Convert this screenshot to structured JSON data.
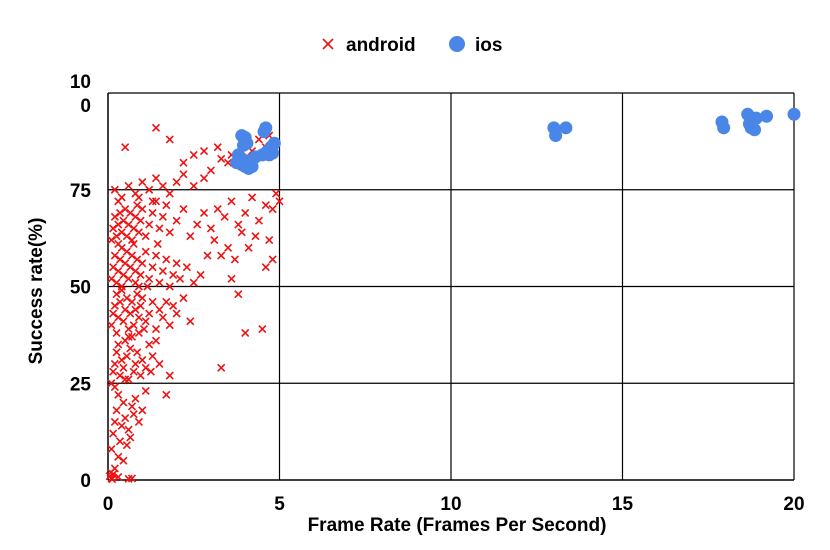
{
  "chart_data": {
    "type": "scatter",
    "title": "",
    "xlabel": "Frame Rate (Frames Per Second)",
    "ylabel": "Success rate(%)",
    "xlim": [
      0,
      20
    ],
    "ylim": [
      0,
      100
    ],
    "x_ticks": [
      "0",
      "5",
      "10",
      "15",
      "20"
    ],
    "y_ticks": [
      "0",
      "25",
      "50",
      "75",
      "10\n0"
    ],
    "grid": true,
    "legend": "top-center",
    "series": [
      {
        "name": "android",
        "marker": "x",
        "color": "#ee1111",
        "points": [
          [
            0.05,
            1
          ],
          [
            0.08,
            2
          ],
          [
            0.1,
            0.5
          ],
          [
            0.15,
            1.5
          ],
          [
            0.2,
            3
          ],
          [
            0.12,
            0.2
          ],
          [
            0.3,
            0.8
          ],
          [
            0.6,
            0.3
          ],
          [
            0.7,
            0.4
          ],
          [
            0.1,
            8
          ],
          [
            0.15,
            12
          ],
          [
            0.2,
            15
          ],
          [
            0.25,
            18
          ],
          [
            0.3,
            22
          ],
          [
            0.35,
            10
          ],
          [
            0.4,
            14
          ],
          [
            0.45,
            20
          ],
          [
            0.5,
            16
          ],
          [
            0.55,
            9
          ],
          [
            0.6,
            13
          ],
          [
            0.65,
            11
          ],
          [
            0.7,
            19
          ],
          [
            0.75,
            17
          ],
          [
            0.8,
            21
          ],
          [
            0.9,
            15
          ],
          [
            1.0,
            18
          ],
          [
            1.1,
            23
          ],
          [
            0.45,
            5
          ],
          [
            0.3,
            6
          ],
          [
            0.1,
            25
          ],
          [
            0.15,
            28
          ],
          [
            0.2,
            30
          ],
          [
            0.25,
            33
          ],
          [
            0.3,
            35
          ],
          [
            0.35,
            27
          ],
          [
            0.4,
            31
          ],
          [
            0.45,
            29
          ],
          [
            0.5,
            36
          ],
          [
            0.55,
            32
          ],
          [
            0.6,
            26
          ],
          [
            0.65,
            34
          ],
          [
            0.7,
            37
          ],
          [
            0.75,
            28
          ],
          [
            0.8,
            30
          ],
          [
            0.85,
            33
          ],
          [
            0.9,
            38
          ],
          [
            0.95,
            27
          ],
          [
            1.0,
            31
          ],
          [
            1.1,
            29
          ],
          [
            1.2,
            35
          ],
          [
            1.3,
            32
          ],
          [
            1.4,
            36
          ],
          [
            1.5,
            30
          ],
          [
            1.7,
            22
          ],
          [
            1.8,
            27
          ],
          [
            0.2,
            24
          ],
          [
            0.5,
            26
          ],
          [
            1.25,
            28
          ],
          [
            0.1,
            40
          ],
          [
            0.15,
            43
          ],
          [
            0.2,
            45
          ],
          [
            0.25,
            48
          ],
          [
            0.3,
            42
          ],
          [
            0.35,
            46
          ],
          [
            0.4,
            49
          ],
          [
            0.45,
            41
          ],
          [
            0.5,
            44
          ],
          [
            0.55,
            47
          ],
          [
            0.6,
            39
          ],
          [
            0.65,
            43
          ],
          [
            0.7,
            46
          ],
          [
            0.75,
            40
          ],
          [
            0.8,
            44
          ],
          [
            0.85,
            48
          ],
          [
            0.9,
            42
          ],
          [
            0.95,
            45
          ],
          [
            1.0,
            47
          ],
          [
            1.1,
            41
          ],
          [
            1.2,
            43
          ],
          [
            1.3,
            46
          ],
          [
            1.4,
            39
          ],
          [
            1.5,
            44
          ],
          [
            1.6,
            42
          ],
          [
            1.7,
            46
          ],
          [
            1.8,
            40
          ],
          [
            1.9,
            45
          ],
          [
            2.0,
            43
          ],
          [
            2.2,
            47
          ],
          [
            2.4,
            41
          ],
          [
            0.25,
            38
          ],
          [
            0.6,
            37
          ],
          [
            1.05,
            39
          ],
          [
            0.1,
            52
          ],
          [
            0.15,
            55
          ],
          [
            0.2,
            58
          ],
          [
            0.25,
            51
          ],
          [
            0.3,
            54
          ],
          [
            0.35,
            57
          ],
          [
            0.4,
            60
          ],
          [
            0.45,
            53
          ],
          [
            0.5,
            56
          ],
          [
            0.55,
            59
          ],
          [
            0.6,
            52
          ],
          [
            0.65,
            55
          ],
          [
            0.7,
            58
          ],
          [
            0.75,
            61
          ],
          [
            0.8,
            54
          ],
          [
            0.85,
            57
          ],
          [
            0.9,
            50
          ],
          [
            0.95,
            53
          ],
          [
            1.0,
            56
          ],
          [
            1.1,
            59
          ],
          [
            1.2,
            52
          ],
          [
            1.3,
            55
          ],
          [
            1.4,
            58
          ],
          [
            1.5,
            51
          ],
          [
            1.6,
            54
          ],
          [
            1.7,
            57
          ],
          [
            1.8,
            50
          ],
          [
            1.9,
            53
          ],
          [
            2.0,
            56
          ],
          [
            2.1,
            52
          ],
          [
            2.3,
            55
          ],
          [
            2.5,
            51
          ],
          [
            0.4,
            50
          ],
          [
            0.8,
            51
          ],
          [
            1.15,
            50
          ],
          [
            0.1,
            62
          ],
          [
            0.15,
            65
          ],
          [
            0.2,
            68
          ],
          [
            0.25,
            63
          ],
          [
            0.3,
            66
          ],
          [
            0.35,
            69
          ],
          [
            0.4,
            64
          ],
          [
            0.45,
            67
          ],
          [
            0.5,
            70
          ],
          [
            0.55,
            63
          ],
          [
            0.6,
            66
          ],
          [
            0.65,
            69
          ],
          [
            0.7,
            62
          ],
          [
            0.75,
            65
          ],
          [
            0.8,
            68
          ],
          [
            0.85,
            71
          ],
          [
            0.9,
            64
          ],
          [
            0.95,
            67
          ],
          [
            1.0,
            70
          ],
          [
            1.1,
            63
          ],
          [
            1.2,
            66
          ],
          [
            1.3,
            69
          ],
          [
            1.4,
            72
          ],
          [
            1.5,
            65
          ],
          [
            1.6,
            68
          ],
          [
            1.7,
            71
          ],
          [
            1.8,
            64
          ],
          [
            2.0,
            67
          ],
          [
            2.2,
            70
          ],
          [
            2.4,
            63
          ],
          [
            2.6,
            66
          ],
          [
            2.8,
            69
          ],
          [
            0.3,
            61
          ],
          [
            1.45,
            61
          ],
          [
            0.2,
            75
          ],
          [
            0.4,
            73
          ],
          [
            0.6,
            76
          ],
          [
            0.8,
            74
          ],
          [
            1.0,
            77
          ],
          [
            1.2,
            75
          ],
          [
            1.4,
            78
          ],
          [
            1.6,
            76
          ],
          [
            1.8,
            74
          ],
          [
            2.0,
            77
          ],
          [
            2.2,
            79
          ],
          [
            2.5,
            76
          ],
          [
            2.8,
            78
          ],
          [
            3.0,
            80
          ],
          [
            0.3,
            72
          ],
          [
            0.9,
            73
          ],
          [
            1.3,
            72
          ],
          [
            0.5,
            86
          ],
          [
            1.4,
            91
          ],
          [
            1.8,
            88
          ],
          [
            2.2,
            82
          ],
          [
            2.5,
            84
          ],
          [
            2.8,
            85
          ],
          [
            3.2,
            86
          ],
          [
            3.3,
            83
          ],
          [
            3.6,
            84
          ],
          [
            4.0,
            87
          ],
          [
            4.2,
            85
          ],
          [
            4.4,
            88
          ],
          [
            4.6,
            86
          ],
          [
            4.8,
            84
          ],
          [
            4.9,
            87
          ],
          [
            4.3,
            83
          ],
          [
            3.9,
            85
          ],
          [
            3.5,
            82
          ],
          [
            4.7,
            89
          ],
          [
            3.0,
            65
          ],
          [
            3.2,
            70
          ],
          [
            3.4,
            68
          ],
          [
            3.6,
            72
          ],
          [
            3.8,
            66
          ],
          [
            4.0,
            69
          ],
          [
            4.2,
            73
          ],
          [
            4.4,
            67
          ],
          [
            4.6,
            71
          ],
          [
            4.8,
            70
          ],
          [
            4.9,
            74
          ],
          [
            5.0,
            72
          ],
          [
            3.1,
            62
          ],
          [
            3.5,
            60
          ],
          [
            3.9,
            64
          ],
          [
            4.3,
            63
          ],
          [
            4.7,
            62
          ],
          [
            3.3,
            58
          ],
          [
            3.7,
            57
          ],
          [
            4.1,
            60
          ],
          [
            4.6,
            55
          ],
          [
            4.8,
            57
          ],
          [
            3.6,
            52
          ],
          [
            3.8,
            48
          ],
          [
            4.0,
            38
          ],
          [
            4.5,
            39
          ],
          [
            3.3,
            29
          ],
          [
            2.7,
            53
          ],
          [
            2.9,
            58
          ]
        ]
      },
      {
        "name": "ios",
        "marker": "circle",
        "color": "#4a86e8",
        "points": [
          [
            3.75,
            82
          ],
          [
            3.8,
            84
          ],
          [
            3.9,
            81.5
          ],
          [
            4.0,
            81
          ],
          [
            4.05,
            82.5
          ],
          [
            4.1,
            80.5
          ],
          [
            4.2,
            81
          ],
          [
            4.3,
            83.5
          ],
          [
            4.5,
            84
          ],
          [
            4.65,
            85
          ],
          [
            4.75,
            86
          ],
          [
            4.8,
            84.5
          ],
          [
            4.85,
            87
          ],
          [
            3.9,
            89
          ],
          [
            4.0,
            88.5
          ],
          [
            4.05,
            87
          ],
          [
            3.95,
            86.5
          ],
          [
            4.6,
            91
          ],
          [
            4.55,
            90
          ],
          [
            4.7,
            84
          ],
          [
            13.0,
            91
          ],
          [
            13.05,
            89
          ],
          [
            13.35,
            91
          ],
          [
            17.9,
            92.5
          ],
          [
            17.95,
            91
          ],
          [
            18.65,
            94.5
          ],
          [
            18.7,
            92
          ],
          [
            18.75,
            91
          ],
          [
            18.85,
            90.5
          ],
          [
            18.9,
            93.5
          ],
          [
            19.2,
            94
          ],
          [
            20.0,
            94.5
          ]
        ]
      }
    ]
  }
}
